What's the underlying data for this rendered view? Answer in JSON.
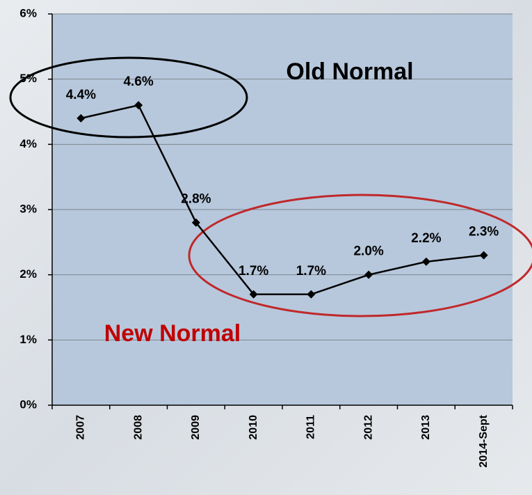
{
  "chart_data": {
    "type": "line",
    "categories": [
      "2007",
      "2008",
      "2009",
      "2010",
      "2011",
      "2012",
      "2013",
      "2014-Sept"
    ],
    "values": [
      4.4,
      4.6,
      2.8,
      1.7,
      1.7,
      2.0,
      2.2,
      2.3
    ],
    "value_labels": [
      "4.4%",
      "4.6%",
      "2.8%",
      "1.7%",
      "1.7%",
      "2.0%",
      "2.2%",
      "2.3%"
    ],
    "color": "#000000",
    "ylim": [
      0,
      6
    ],
    "yticks": [
      {
        "value": 0,
        "label": "0%"
      },
      {
        "value": 1,
        "label": "1%"
      },
      {
        "value": 2,
        "label": "2%"
      },
      {
        "value": 3,
        "label": "3%"
      },
      {
        "value": 4,
        "label": "4%"
      },
      {
        "value": 5,
        "label": "5%"
      },
      {
        "value": 6,
        "label": "6%"
      }
    ],
    "grid": true,
    "annotations": [
      "Old Normal",
      "New Normal"
    ]
  }
}
